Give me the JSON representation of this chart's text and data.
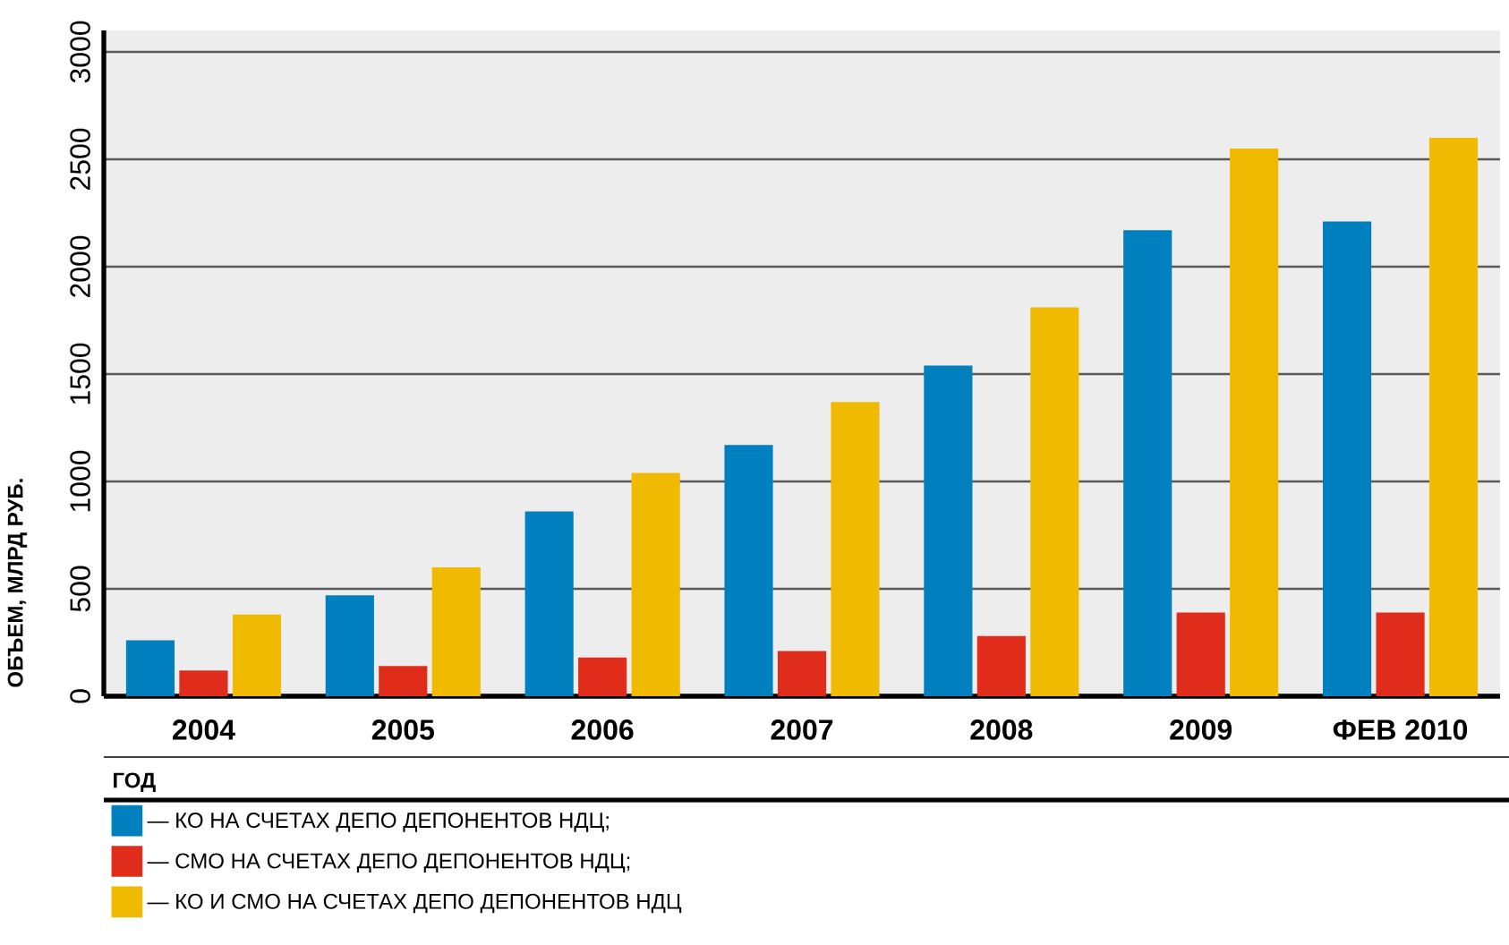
{
  "chart_data": {
    "type": "bar",
    "xlabel": "ГОД",
    "ylabel": "ОБЪЕМ, МЛРД РУБ.",
    "categories": [
      "2004",
      "2005",
      "2006",
      "2007",
      "2008",
      "2009",
      "ФЕВ 2010"
    ],
    "series": [
      {
        "name": "—  КО НА СЧЕТАХ ДЕПО ДЕПОНЕНТОВ НДЦ;",
        "color": "#0080be",
        "values": [
          260,
          470,
          860,
          1170,
          1540,
          2170,
          2210
        ]
      },
      {
        "name": "—  СМО НА СЧЕТАХ ДЕПО ДЕПОНЕНТОВ НДЦ;",
        "color": "#e02d1b",
        "values": [
          120,
          140,
          180,
          210,
          280,
          390,
          390
        ]
      },
      {
        "name": "—  КО И СМО НА СЧЕТАХ ДЕПО ДЕПОНЕНТОВ НДЦ",
        "color": "#f0ba00",
        "values": [
          380,
          600,
          1040,
          1370,
          1810,
          2550,
          2600
        ]
      }
    ],
    "ylim": [
      0,
      3100
    ],
    "yticks": [
      0,
      500,
      1000,
      1500,
      2000,
      2500,
      3000
    ],
    "grid": "y",
    "legend": "bottom"
  }
}
